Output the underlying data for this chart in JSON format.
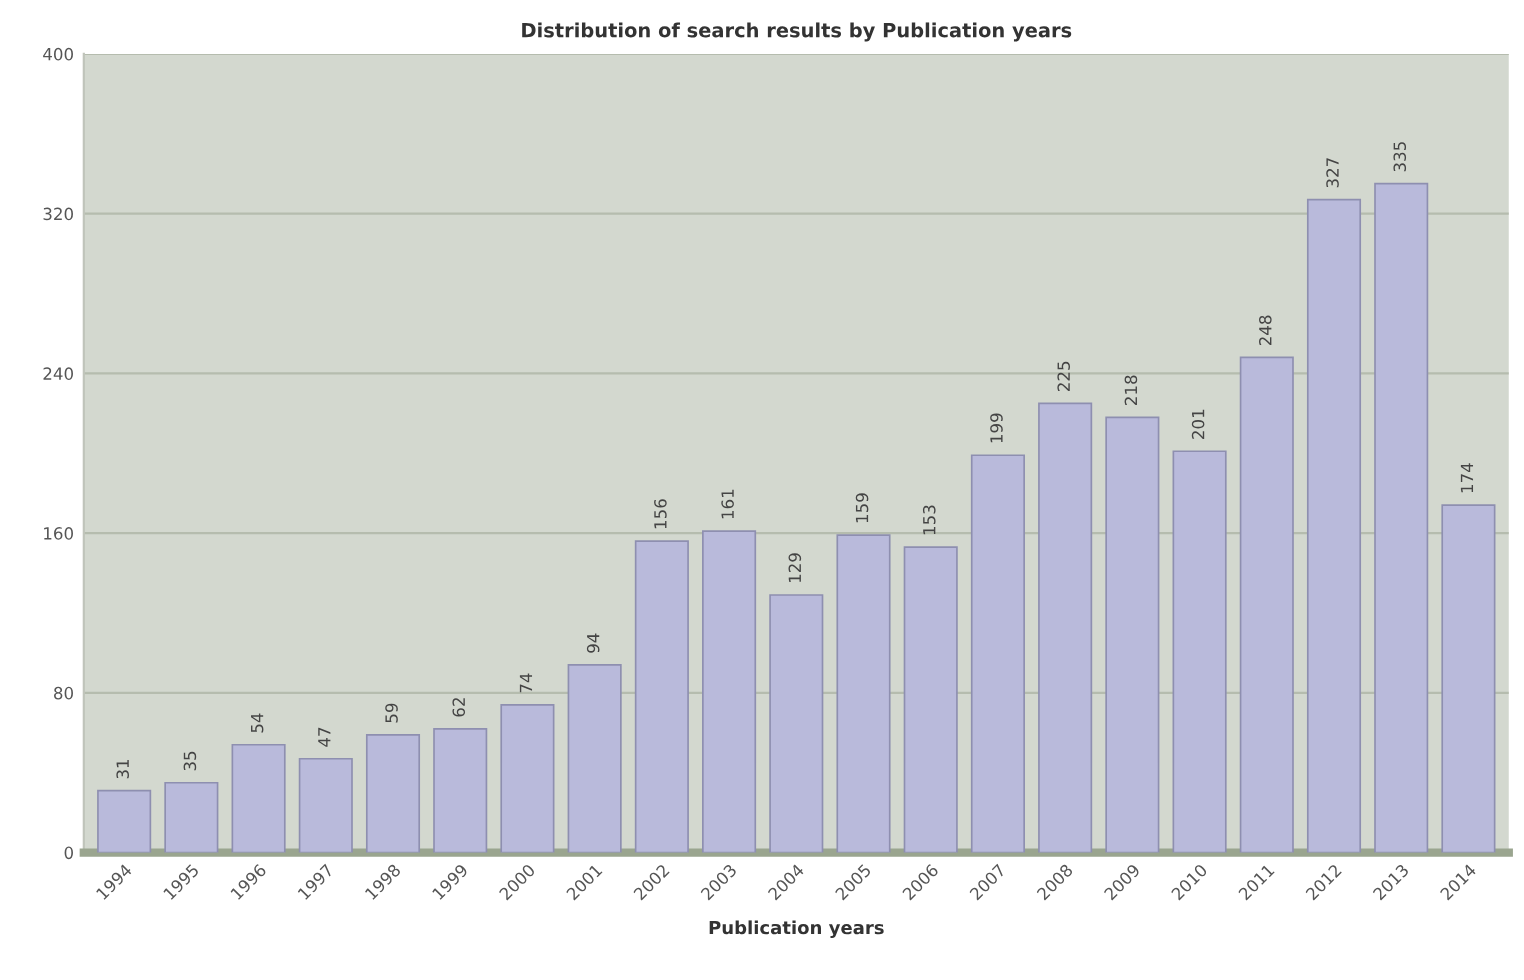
{
  "chart_data": {
    "type": "bar",
    "title": "Distribution of search results by Publication years",
    "xlabel": "Publication years",
    "categories": [
      "1994",
      "1995",
      "1996",
      "1997",
      "1998",
      "1999",
      "2000",
      "2001",
      "2002",
      "2003",
      "2004",
      "2005",
      "2006",
      "2007",
      "2008",
      "2009",
      "2010",
      "2011",
      "2012",
      "2013",
      "2014"
    ],
    "values": [
      31,
      35,
      54,
      47,
      59,
      62,
      74,
      94,
      156,
      161,
      129,
      159,
      153,
      199,
      225,
      218,
      201,
      248,
      327,
      335,
      174
    ],
    "color": "#b9badb",
    "ylim": [
      0,
      400
    ],
    "yticks": [
      0,
      80,
      160,
      240,
      320,
      400
    ],
    "grid": "y",
    "data_labels": true
  }
}
